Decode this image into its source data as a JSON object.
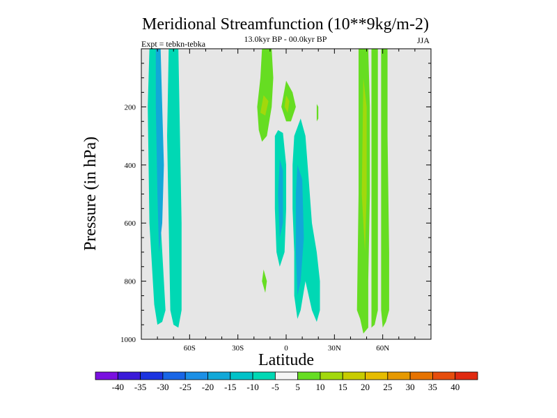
{
  "chart_data": {
    "type": "heatmap",
    "title": "Meridional Streamfunction (10**9kg/m-2)",
    "subtitle": "13.0kyr BP - 00.0kyr BP",
    "left_annotation": "Expt = tebkn-tebka",
    "right_annotation": "JJA",
    "xlabel": "Latitude",
    "ylabel": "Pressure (in hPa)",
    "xlim": [
      -90,
      90
    ],
    "ylim": [
      0,
      1000
    ],
    "y_inverted": true,
    "xticks": [
      {
        "value": -60,
        "label": "60S"
      },
      {
        "value": -30,
        "label": "30S"
      },
      {
        "value": 0,
        "label": "0"
      },
      {
        "value": 30,
        "label": "30N"
      },
      {
        "value": 60,
        "label": "60N"
      }
    ],
    "yticks": [
      {
        "value": 200,
        "label": "200"
      },
      {
        "value": 400,
        "label": "400"
      },
      {
        "value": 600,
        "label": "600"
      },
      {
        "value": 800,
        "label": "800"
      },
      {
        "value": 1000,
        "label": "1000"
      }
    ],
    "background_color": "#e6e6e6",
    "colorbar": {
      "levels": [
        "-40",
        "-35",
        "-30",
        "-25",
        "-20",
        "-15",
        "-10",
        "-5",
        "5",
        "10",
        "15",
        "20",
        "25",
        "30",
        "35",
        "40"
      ],
      "colors": [
        "#7a10e0",
        "#3a1ad8",
        "#1c34e0",
        "#1966e6",
        "#1c90e6",
        "#12a8d8",
        "#00c2c8",
        "#00d8b4",
        "#f5f5f5",
        "#66dd22",
        "#a2d80c",
        "#c8cc00",
        "#e6bc00",
        "#e69900",
        "#e67300",
        "#e64d0c",
        "#e02a10"
      ]
    },
    "regions": [
      {
        "name": "antarctic-cell-1",
        "value": -12,
        "color": "#00d8b4",
        "points": [
          [
            -85,
            0
          ],
          [
            -80,
            0
          ],
          [
            -79,
            250
          ],
          [
            -78,
            600
          ],
          [
            -76,
            800
          ],
          [
            -75,
            900
          ],
          [
            -77,
            940
          ],
          [
            -80,
            950
          ],
          [
            -82,
            880
          ],
          [
            -85,
            600
          ],
          [
            -86,
            200
          ]
        ]
      },
      {
        "name": "antarctic-cell-2",
        "value": -18,
        "color": "#12a8d8",
        "points": [
          [
            -81,
            0
          ],
          [
            -78,
            0
          ],
          [
            -77,
            200
          ],
          [
            -76,
            400
          ],
          [
            -77,
            600
          ],
          [
            -79,
            700
          ],
          [
            -80,
            500
          ],
          [
            -81,
            200
          ]
        ]
      },
      {
        "name": "antarctic-cell-3",
        "value": -12,
        "color": "#00d8b4",
        "points": [
          [
            -73,
            0
          ],
          [
            -67,
            0
          ],
          [
            -66,
            300
          ],
          [
            -65,
            600
          ],
          [
            -65,
            900
          ],
          [
            -67,
            960
          ],
          [
            -70,
            950
          ],
          [
            -72,
            900
          ],
          [
            -73,
            600
          ],
          [
            -74,
            300
          ]
        ]
      },
      {
        "name": "nh-upper-cell-1",
        "value": 8,
        "color": "#66dd22",
        "points": [
          [
            -15,
            0
          ],
          [
            -9,
            0
          ],
          [
            -8,
            100
          ],
          [
            -9,
            200
          ],
          [
            -12,
            300
          ],
          [
            -15,
            320
          ],
          [
            -17,
            280
          ],
          [
            -18,
            200
          ],
          [
            -16,
            100
          ]
        ]
      },
      {
        "name": "nh-upper-peak-1",
        "value": 12,
        "color": "#a2d80c",
        "points": [
          [
            -14,
            160
          ],
          [
            -11,
            180
          ],
          [
            -13,
            230
          ],
          [
            -16,
            220
          ]
        ]
      },
      {
        "name": "nh-upper-cell-2",
        "value": 8,
        "color": "#66dd22",
        "points": [
          [
            0,
            110
          ],
          [
            4,
            150
          ],
          [
            6,
            200
          ],
          [
            3,
            250
          ],
          [
            0,
            250
          ],
          [
            -3,
            200
          ]
        ]
      },
      {
        "name": "nh-upper-peak-2",
        "value": 12,
        "color": "#a2d80c",
        "points": [
          [
            0,
            160
          ],
          [
            2,
            180
          ],
          [
            1,
            220
          ],
          [
            -1,
            200
          ]
        ]
      },
      {
        "name": "nh-upper-cell-3",
        "value": 6,
        "color": "#66dd22",
        "points": [
          [
            19,
            190
          ],
          [
            20,
            200
          ],
          [
            20,
            240
          ],
          [
            19,
            250
          ]
        ]
      },
      {
        "name": "tropical-cell-left",
        "value": -12,
        "color": "#00d8b4",
        "points": [
          [
            -5,
            280
          ],
          [
            -2,
            290
          ],
          [
            0,
            400
          ],
          [
            0,
            550
          ],
          [
            -1,
            700
          ],
          [
            -4,
            750
          ],
          [
            -6,
            700
          ],
          [
            -7,
            550
          ],
          [
            -7,
            400
          ],
          [
            -7,
            300
          ]
        ]
      },
      {
        "name": "tropical-core-left",
        "value": -18,
        "color": "#12a8d8",
        "points": [
          [
            -4,
            380
          ],
          [
            -2,
            420
          ],
          [
            -2,
            600
          ],
          [
            -4,
            650
          ],
          [
            -5,
            500
          ]
        ]
      },
      {
        "name": "tropical-cell-right",
        "value": -12,
        "color": "#00d8b4",
        "points": [
          [
            9,
            240
          ],
          [
            12,
            300
          ],
          [
            14,
            450
          ],
          [
            16,
            600
          ],
          [
            19,
            700
          ],
          [
            21,
            800
          ],
          [
            21,
            900
          ],
          [
            19,
            940
          ],
          [
            16,
            900
          ],
          [
            12,
            800
          ],
          [
            9,
            900
          ],
          [
            7,
            930
          ],
          [
            5,
            850
          ],
          [
            5,
            700
          ],
          [
            4,
            550
          ],
          [
            4,
            400
          ],
          [
            5,
            300
          ]
        ]
      },
      {
        "name": "tropical-core-right",
        "value": -18,
        "color": "#12a8d8",
        "points": [
          [
            7,
            400
          ],
          [
            10,
            450
          ],
          [
            11,
            650
          ],
          [
            9,
            800
          ],
          [
            7,
            850
          ],
          [
            6,
            700
          ],
          [
            6,
            500
          ]
        ]
      },
      {
        "name": "tropical-low-blob",
        "value": 6,
        "color": "#66dd22",
        "points": [
          [
            -14,
            760
          ],
          [
            -12,
            800
          ],
          [
            -13,
            840
          ],
          [
            -14,
            820
          ],
          [
            -15,
            800
          ]
        ]
      },
      {
        "name": "nh-midlat-cell",
        "value": 8,
        "color": "#66dd22",
        "points": [
          [
            45,
            0
          ],
          [
            51,
            0
          ],
          [
            52,
            200
          ],
          [
            52,
            500
          ],
          [
            51,
            800
          ],
          [
            51,
            960
          ],
          [
            48,
            980
          ],
          [
            46,
            930
          ],
          [
            44,
            900
          ],
          [
            45,
            500
          ]
        ]
      },
      {
        "name": "nh-midlat-core",
        "value": 12,
        "color": "#a2d80c",
        "points": [
          [
            48,
            100
          ],
          [
            50,
            200
          ],
          [
            50,
            500
          ],
          [
            49,
            700
          ],
          [
            47,
            500
          ]
        ]
      },
      {
        "name": "nh-midlat-cell-2",
        "value": 8,
        "color": "#66dd22",
        "points": [
          [
            53,
            0
          ],
          [
            57,
            0
          ],
          [
            57,
            300
          ],
          [
            57,
            600
          ],
          [
            57,
            900
          ],
          [
            55,
            950
          ],
          [
            53,
            960
          ],
          [
            53,
            600
          ]
        ]
      },
      {
        "name": "nh-midlat-cell-3",
        "value": 8,
        "color": "#66dd22",
        "points": [
          [
            59,
            0
          ],
          [
            63,
            0
          ],
          [
            63,
            300
          ],
          [
            64,
            700
          ],
          [
            64,
            900
          ],
          [
            62,
            940
          ],
          [
            60,
            960
          ],
          [
            59,
            900
          ],
          [
            59,
            600
          ]
        ]
      }
    ]
  }
}
